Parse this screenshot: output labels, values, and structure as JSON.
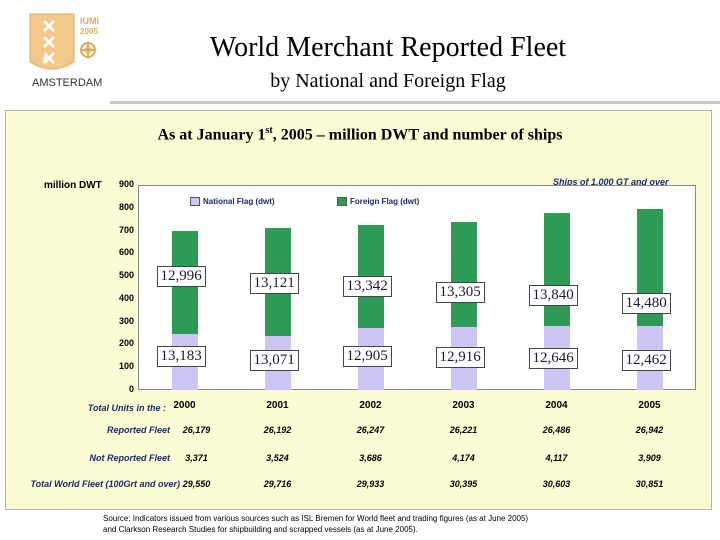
{
  "logo": {
    "line1": "IUMI",
    "line2": "2005",
    "city": "AMSTERDAM"
  },
  "header": {
    "title": "World Merchant Reported Fleet",
    "subtitle": "by National and Foreign Flag"
  },
  "chart_title": {
    "part1": "As at January 1",
    "sup": "st",
    "part2": ", 2005 – million DWT and number of ships"
  },
  "chart_data": {
    "type": "bar",
    "stacked": true,
    "categories": [
      "2000",
      "2001",
      "2002",
      "2003",
      "2004",
      "2005"
    ],
    "ylabel": "million DWT",
    "ylim": [
      0,
      900
    ],
    "yticks": [
      0,
      100,
      200,
      300,
      400,
      500,
      600,
      700,
      800,
      900
    ],
    "note": "Ships of 1,000 GT and over",
    "legend_position": "top",
    "series": [
      {
        "name": "National Flag (dwt)",
        "color": "#cbc6f3",
        "values": [
          245,
          235,
          272,
          275,
          280,
          282
        ]
      },
      {
        "name": "Foreign Flag (dwt)",
        "color": "#2e9a57",
        "values": [
          455,
          475,
          452,
          462,
          498,
          512
        ]
      }
    ],
    "labels": {
      "national": [
        "13,183",
        "13,071",
        "12,905",
        "12,916",
        "12,646",
        "12,462"
      ],
      "foreign": [
        "12,996",
        "13,121",
        "13,342",
        "13,305",
        "13,840",
        "14,480"
      ]
    }
  },
  "table": {
    "header_label": "Total Units in the :",
    "rows": [
      {
        "label": "Reported Fleet",
        "values": [
          "26,179",
          "26,192",
          "26,247",
          "26,221",
          "26,486",
          "26,942"
        ]
      },
      {
        "label": "Not Reported Fleet",
        "values": [
          "3,371",
          "3,524",
          "3,686",
          "4,174",
          "4,117",
          "3,909"
        ]
      },
      {
        "label": "Total World Fleet (100Grt and over)",
        "values": [
          "29,550",
          "29,716",
          "29,933",
          "30,395",
          "30,603",
          "30,851"
        ]
      }
    ]
  },
  "source": {
    "line1": "Source: Indicators issued from various sources such as ISL Bremen for World fleet and trading figures (as at June 2005)",
    "line2": "and Clarkson Research Studies for shipbuilding and scrapped vessels (as at June 2005)."
  }
}
